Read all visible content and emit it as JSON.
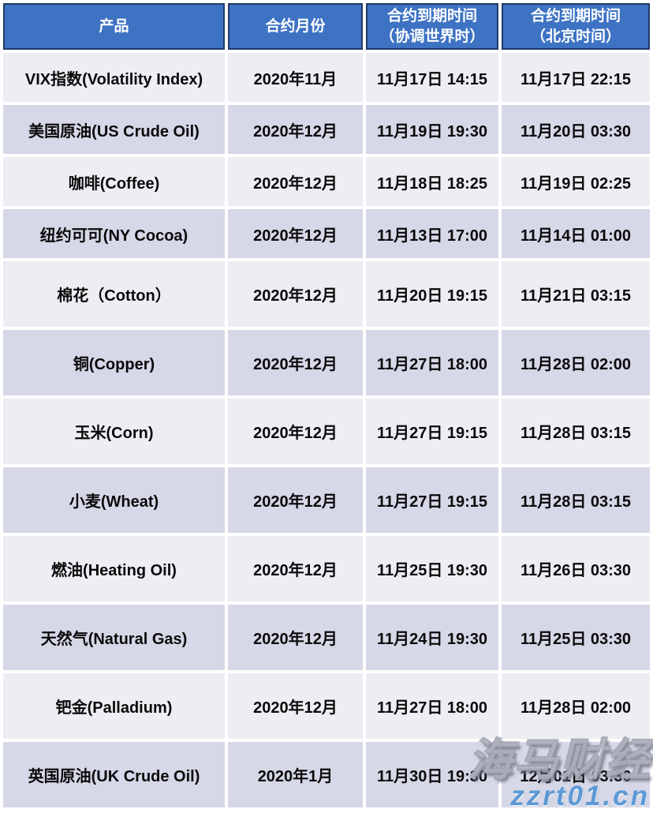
{
  "table": {
    "headers": [
      {
        "line1": "产品",
        "line2": ""
      },
      {
        "line1": "合约月份",
        "line2": ""
      },
      {
        "line1": "合约到期时间",
        "line2": "（协调世界时）"
      },
      {
        "line1": "合约到期时间",
        "line2": "（北京时间）"
      }
    ],
    "rows": [
      {
        "product": "VIX指数(Volatility Index)",
        "month": "2020年11月",
        "utc": "11月17日 14:15",
        "beijing": "11月17日 22:15"
      },
      {
        "product": "美国原油(US Crude Oil)",
        "month": "2020年12月",
        "utc": "11月19日 19:30",
        "beijing": "11月20日 03:30"
      },
      {
        "product": "咖啡(Coffee)",
        "month": "2020年12月",
        "utc": "11月18日 18:25",
        "beijing": "11月19日 02:25"
      },
      {
        "product": "纽约可可(NY Cocoa)",
        "month": "2020年12月",
        "utc": "11月13日 17:00",
        "beijing": "11月14日 01:00"
      },
      {
        "product": "棉花（Cotton）",
        "month": "2020年12月",
        "utc": "11月20日 19:15",
        "beijing": "11月21日 03:15"
      },
      {
        "product": "铜(Copper)",
        "month": "2020年12月",
        "utc": "11月27日 18:00",
        "beijing": "11月28日 02:00"
      },
      {
        "product": "玉米(Corn)",
        "month": "2020年12月",
        "utc": "11月27日 19:15",
        "beijing": "11月28日 03:15"
      },
      {
        "product": "小麦(Wheat)",
        "month": "2020年12月",
        "utc": "11月27日 19:15",
        "beijing": "11月28日 03:15"
      },
      {
        "product": "燃油(Heating Oil)",
        "month": "2020年12月",
        "utc": "11月25日 19:30",
        "beijing": "11月26日 03:30"
      },
      {
        "product": "天然气(Natural Gas)",
        "month": "2020年12月",
        "utc": "11月24日 19:30",
        "beijing": "11月25日 03:30"
      },
      {
        "product": "钯金(Palladium)",
        "month": "2020年12月",
        "utc": "11月27日 18:00",
        "beijing": "11月28日 02:00"
      },
      {
        "product": "英国原油(UK Crude Oil)",
        "month": "2020年1月",
        "utc": "11月30日 19:30",
        "beijing": "12月01日 03:30"
      }
    ]
  },
  "watermark": {
    "brand": "海马财经",
    "url": "zzrt01.cn"
  },
  "colors": {
    "header_bg": "#3e73c4",
    "header_border": "#203a66",
    "row_light": "#ededf3",
    "row_dark": "#d6d7e7",
    "text_color": "#0a0a0a",
    "url_color": "#5c99d6"
  }
}
